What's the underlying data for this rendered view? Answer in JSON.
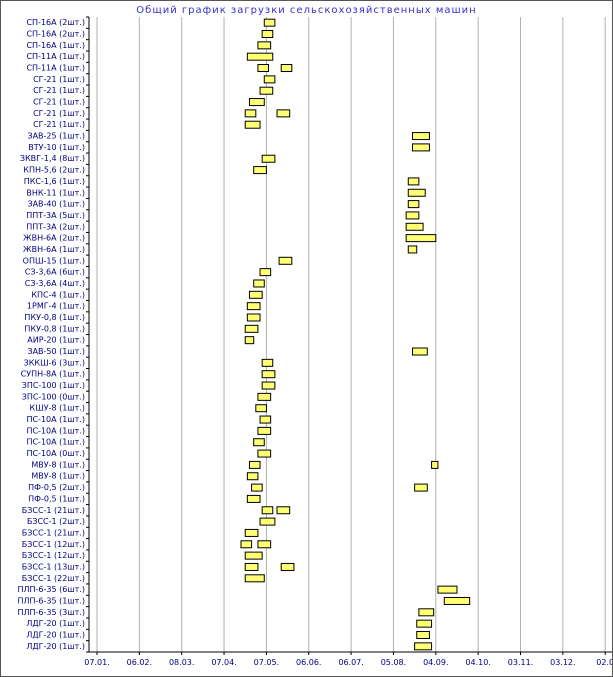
{
  "chart_data": {
    "type": "bar",
    "subtype": "gantt",
    "title": "Общий график загрузки сельскохозяйственных машин",
    "x_ticks": [
      "07.01.",
      "06.02.",
      "08.03.",
      "07.04.",
      "07.05.",
      "06.06.",
      "06.07.",
      "05.08.",
      "04.09.",
      "04.10.",
      "03.11.",
      "03.12.",
      "02.0"
    ],
    "x_units": "tick index (ticks spaced ~30 days, starting 07.01)",
    "grid": "vertical gridlines at each month tick",
    "colors": {
      "bar_fill": "#ffff73",
      "bar_border": "#000000",
      "grid": "#b0b0b0",
      "axis": "#000000",
      "row_label": "#000080",
      "axis_label": "#000080",
      "title": "#3333cc",
      "background": "#ffffff"
    },
    "rows": [
      {
        "label": "СП-16А (2шт.)",
        "bars": [
          [
            3.95,
            4.2
          ]
        ]
      },
      {
        "label": "СП-16А (2шт.)",
        "bars": [
          [
            3.9,
            4.15
          ]
        ]
      },
      {
        "label": "СП-16А (1шт.)",
        "bars": [
          [
            3.8,
            4.1
          ]
        ]
      },
      {
        "label": "СП-11А (1шт.)",
        "bars": [
          [
            3.55,
            4.15
          ]
        ]
      },
      {
        "label": "СП-11А (1шт.)",
        "bars": [
          [
            3.8,
            4.05
          ],
          [
            4.35,
            4.6
          ]
        ]
      },
      {
        "label": "СГ-21 (1шт.)",
        "bars": [
          [
            3.95,
            4.2
          ]
        ]
      },
      {
        "label": "СГ-21 (1шт.)",
        "bars": [
          [
            3.85,
            4.15
          ]
        ]
      },
      {
        "label": "СГ-21 (1шт.)",
        "bars": [
          [
            3.6,
            3.95
          ]
        ]
      },
      {
        "label": "СГ-21 (1шт.)",
        "bars": [
          [
            3.5,
            3.75
          ],
          [
            4.25,
            4.55
          ]
        ]
      },
      {
        "label": "СГ-21 (1шт.)",
        "bars": [
          [
            3.5,
            3.85
          ]
        ]
      },
      {
        "label": "ЗАВ-25 (1шт.)",
        "bars": [
          [
            7.45,
            7.85
          ]
        ]
      },
      {
        "label": "ВТУ-10 (1шт.)",
        "bars": [
          [
            7.45,
            7.85
          ]
        ]
      },
      {
        "label": "ЗКВГ-1,4 (8шт.)",
        "bars": [
          [
            3.9,
            4.2
          ]
        ]
      },
      {
        "label": "КПН-5,6 (2шт.)",
        "bars": [
          [
            3.7,
            4.0
          ]
        ]
      },
      {
        "label": "ПКС-1,6 (1шт.)",
        "bars": [
          [
            7.35,
            7.6
          ]
        ]
      },
      {
        "label": "ВНК-11 (1шт.)",
        "bars": [
          [
            7.35,
            7.75
          ]
        ]
      },
      {
        "label": "ЗАВ-40 (1шт.)",
        "bars": [
          [
            7.35,
            7.6
          ]
        ]
      },
      {
        "label": "ППТ-3А (5шт.)",
        "bars": [
          [
            7.3,
            7.6
          ]
        ]
      },
      {
        "label": "ППТ-3А (2шт.)",
        "bars": [
          [
            7.3,
            7.7
          ]
        ]
      },
      {
        "label": "ЖВН-6А (2шт.)",
        "bars": [
          [
            7.3,
            8.0
          ]
        ]
      },
      {
        "label": "ЖВН-6А (1шт.)",
        "bars": [
          [
            7.35,
            7.55
          ]
        ]
      },
      {
        "label": "ОПШ-15 (1шт.)",
        "bars": [
          [
            4.3,
            4.6
          ]
        ]
      },
      {
        "label": "СЗ-3,6А (6шт.)",
        "bars": [
          [
            3.85,
            4.1
          ]
        ]
      },
      {
        "label": "СЗ-3,6А (4шт.)",
        "bars": [
          [
            3.7,
            3.95
          ]
        ]
      },
      {
        "label": "КПС-4 (1шт.)",
        "bars": [
          [
            3.6,
            3.9
          ]
        ]
      },
      {
        "label": "1РМГ-4 (1шт.)",
        "bars": [
          [
            3.55,
            3.85
          ]
        ]
      },
      {
        "label": "ПКУ-0,8 (1шт.)",
        "bars": [
          [
            3.55,
            3.85
          ]
        ]
      },
      {
        "label": "ПКУ-0,8 (1шт.)",
        "bars": [
          [
            3.5,
            3.8
          ]
        ]
      },
      {
        "label": "АИР-20 (1шт.)",
        "bars": [
          [
            3.5,
            3.7
          ]
        ]
      },
      {
        "label": "ЗАВ-50 (1шт.)",
        "bars": [
          [
            7.45,
            7.8
          ]
        ]
      },
      {
        "label": "ЗККШ-6 (3шт.)",
        "bars": [
          [
            3.9,
            4.15
          ]
        ]
      },
      {
        "label": "СУПН-8А (1шт.)",
        "bars": [
          [
            3.9,
            4.2
          ]
        ]
      },
      {
        "label": "ЗПС-100 (1шт.)",
        "bars": [
          [
            3.9,
            4.2
          ]
        ]
      },
      {
        "label": "ЗПС-100 (0шт.)",
        "bars": [
          [
            3.8,
            4.1
          ]
        ]
      },
      {
        "label": "КШУ-8 (1шт.)",
        "bars": [
          [
            3.75,
            4.0
          ]
        ]
      },
      {
        "label": "ПС-10А (1шт.)",
        "bars": [
          [
            3.85,
            4.1
          ]
        ]
      },
      {
        "label": "ПС-10А (1шт.)",
        "bars": [
          [
            3.8,
            4.1
          ]
        ]
      },
      {
        "label": "ПС-10А (1шт.)",
        "bars": [
          [
            3.7,
            3.95
          ]
        ]
      },
      {
        "label": "ПС-10А (0шт.)",
        "bars": [
          [
            3.8,
            4.1
          ]
        ]
      },
      {
        "label": "МВУ-8 (1шт.)",
        "bars": [
          [
            3.6,
            3.85
          ],
          [
            7.9,
            8.05
          ]
        ]
      },
      {
        "label": "МВУ-8 (1шт.)",
        "bars": [
          [
            3.55,
            3.8
          ]
        ]
      },
      {
        "label": "ПФ-0,5 (2шт.)",
        "bars": [
          [
            3.65,
            3.9
          ],
          [
            7.5,
            7.8
          ]
        ]
      },
      {
        "label": "ПФ-0,5 (1шт.)",
        "bars": [
          [
            3.55,
            3.85
          ]
        ]
      },
      {
        "label": "БЗСС-1 (21шт.)",
        "bars": [
          [
            3.9,
            4.15
          ],
          [
            4.25,
            4.55
          ]
        ]
      },
      {
        "label": "БЗСС-1 (2шт.)",
        "bars": [
          [
            3.85,
            4.2
          ]
        ]
      },
      {
        "label": "БЗСС-1 (21шт.)",
        "bars": [
          [
            3.5,
            3.8
          ]
        ]
      },
      {
        "label": "БЗСС-1 (12шт.)",
        "bars": [
          [
            3.4,
            3.65
          ],
          [
            3.8,
            4.1
          ]
        ]
      },
      {
        "label": "БЗСС-1 (12шт.)",
        "bars": [
          [
            3.5,
            3.9
          ]
        ]
      },
      {
        "label": "БЗСС-1 (13шт.)",
        "bars": [
          [
            3.5,
            3.8
          ],
          [
            4.35,
            4.65
          ]
        ]
      },
      {
        "label": "БЗСС-1 (22шт.)",
        "bars": [
          [
            3.5,
            3.95
          ]
        ]
      },
      {
        "label": "ПЛП-6-35 (6шт.)",
        "bars": [
          [
            8.05,
            8.5
          ]
        ]
      },
      {
        "label": "ПЛП-6-35 (1шт.)",
        "bars": [
          [
            8.2,
            8.8
          ]
        ]
      },
      {
        "label": "ПЛП-6-35 (3шт.)",
        "bars": [
          [
            7.6,
            7.95
          ]
        ]
      },
      {
        "label": "ЛДГ-20 (1шт.)",
        "bars": [
          [
            7.55,
            7.9
          ]
        ]
      },
      {
        "label": "ЛДГ-20 (1шт.)",
        "bars": [
          [
            7.55,
            7.85
          ]
        ]
      },
      {
        "label": "ЛДГ-20 (1шт.)",
        "bars": [
          [
            7.5,
            7.9
          ]
        ]
      }
    ]
  }
}
